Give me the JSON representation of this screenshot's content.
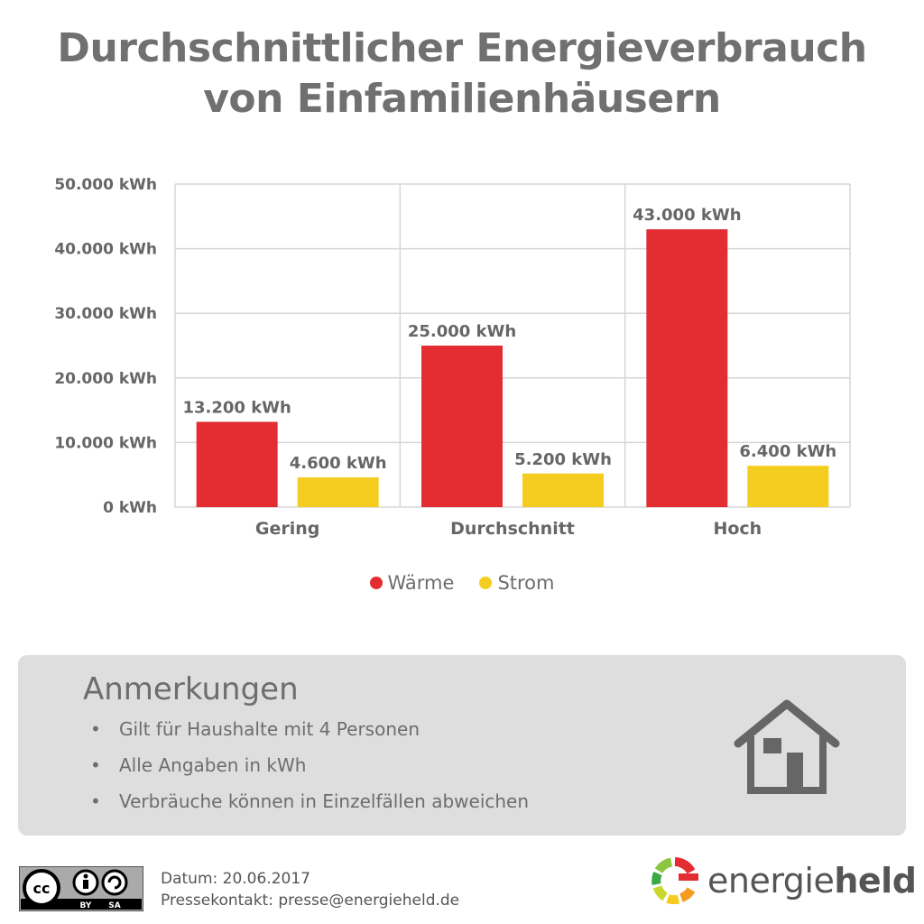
{
  "title": {
    "line1": "Durchschnittlicher Energieverbrauch",
    "line2": "von Einfamilienhäusern"
  },
  "chart_data": {
    "type": "bar",
    "categories": [
      "Gering",
      "Durchschnitt",
      "Hoch"
    ],
    "series": [
      {
        "name": "Wärme",
        "color": "#e32d32",
        "values": [
          13200,
          25000,
          43000
        ],
        "labels": [
          "13.200 kWh",
          "25.000 kWh",
          "43.000 kWh"
        ]
      },
      {
        "name": "Strom",
        "color": "#f5cd20",
        "values": [
          4600,
          5200,
          6400
        ],
        "labels": [
          "4.600 kWh",
          "5.200 kWh",
          "6.400 kWh"
        ]
      }
    ],
    "yticks": [
      0,
      10000,
      20000,
      30000,
      40000,
      50000
    ],
    "ytick_labels": [
      "0 kWh",
      "10.000 kWh",
      "20.000 kWh",
      "30.000 kWh",
      "40.000 kWh",
      "50.000 kWh"
    ],
    "ylim": [
      0,
      50000
    ],
    "grid": true,
    "legend_position": "bottom-center"
  },
  "legend": {
    "items": [
      {
        "label": "Wärme",
        "color": "#e32d32"
      },
      {
        "label": "Strom",
        "color": "#f5cd20"
      }
    ]
  },
  "notes": {
    "title": "Anmerkungen",
    "bullet": "•",
    "items": [
      "Gilt für Haushalte mit 4 Personen",
      "Alle Angaben in kWh",
      "Verbräuche können in Einzelfällen abweichen"
    ],
    "icon": "house-icon"
  },
  "footer": {
    "license": {
      "cc": "cc",
      "by": "BY",
      "sa": "SA"
    },
    "date": "Datum: 20.06.2017",
    "contact": "Pressekontakt: presse@energieheld.de",
    "brand_regular": "energie",
    "brand_bold": "held"
  }
}
